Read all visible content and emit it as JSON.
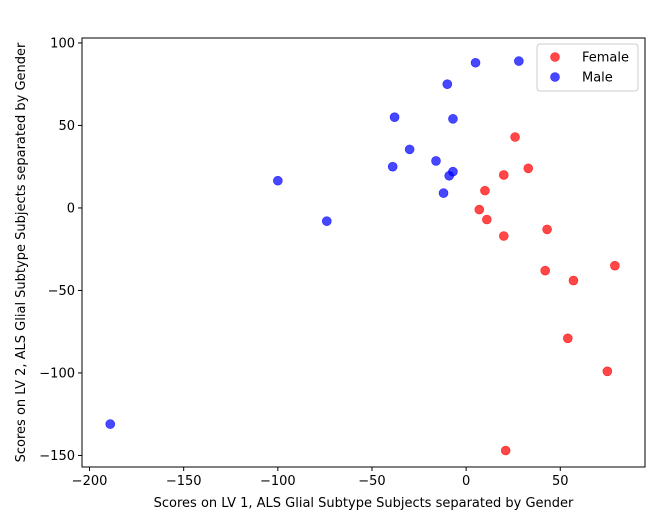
{
  "chart_data": {
    "type": "scatter",
    "title": "",
    "xlabel": "Scores on LV 1, ALS Glial Subtype Subjects separated by Gender",
    "ylabel": "Scores on LV 2, ALS Glial Subtype Subjects separated by Gender",
    "xlim": [
      -204,
      95
    ],
    "ylim": [
      -157,
      103
    ],
    "xticks": [
      -200,
      -150,
      -100,
      -50,
      0,
      50
    ],
    "yticks": [
      -150,
      -100,
      -50,
      0,
      50,
      100
    ],
    "grid": false,
    "legend_position": "top-right",
    "series": [
      {
        "name": "Female",
        "color": "#ff0000",
        "points": [
          [
            26,
            43
          ],
          [
            33,
            24
          ],
          [
            20,
            20
          ],
          [
            10,
            10.5
          ],
          [
            7,
            -1
          ],
          [
            11,
            -7
          ],
          [
            20,
            -17
          ],
          [
            43,
            -13
          ],
          [
            42,
            -38
          ],
          [
            57,
            -44
          ],
          [
            79,
            -35
          ],
          [
            54,
            -79
          ],
          [
            75,
            -99
          ],
          [
            21,
            -147
          ]
        ]
      },
      {
        "name": "Male",
        "color": "#0000ff",
        "points": [
          [
            28,
            89
          ],
          [
            5,
            88
          ],
          [
            -10,
            75
          ],
          [
            -38,
            55
          ],
          [
            -7,
            54
          ],
          [
            -30,
            35.5
          ],
          [
            -16,
            28.5
          ],
          [
            -7,
            22
          ],
          [
            -9,
            19.5
          ],
          [
            -12,
            9
          ],
          [
            -39,
            25
          ],
          [
            -100,
            16.5
          ],
          [
            -74,
            -8
          ],
          [
            -189,
            -131
          ]
        ]
      }
    ]
  }
}
